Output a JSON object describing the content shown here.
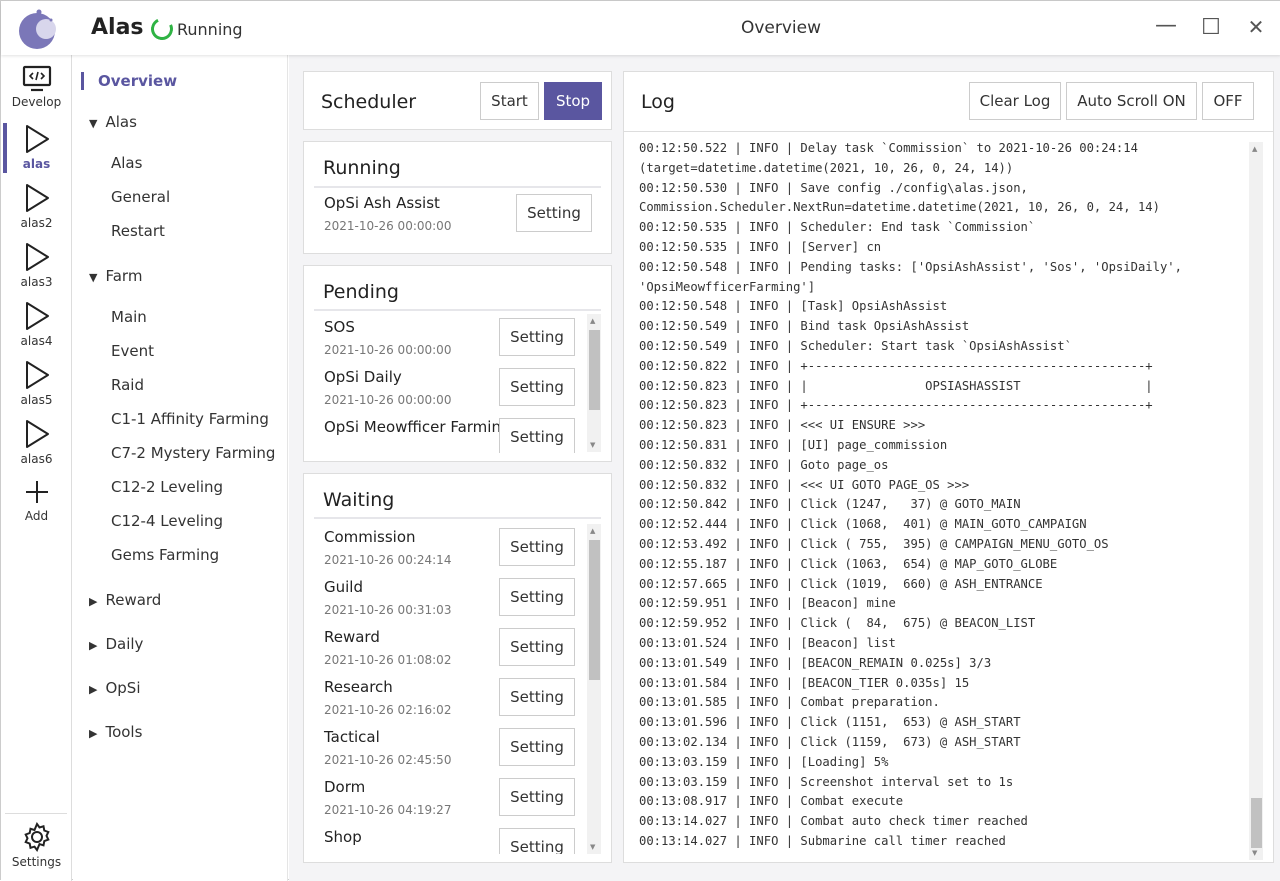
{
  "app": {
    "name": "Alas",
    "status": "Running",
    "window_title": "Overview",
    "accent": "#5a56a0",
    "running_color": "#2fb344"
  },
  "window_controls": {
    "minimize": "—",
    "maximize": "☐",
    "close": "✕"
  },
  "rail": [
    {
      "label": "Develop",
      "icon": "code-monitor-icon"
    },
    {
      "label": "alas",
      "icon": "play-icon"
    },
    {
      "label": "alas2",
      "icon": "play-icon"
    },
    {
      "label": "alas3",
      "icon": "play-icon"
    },
    {
      "label": "alas4",
      "icon": "play-icon"
    },
    {
      "label": "alas5",
      "icon": "play-icon"
    },
    {
      "label": "alas6",
      "icon": "play-icon"
    },
    {
      "label": "Add",
      "icon": "plus-icon"
    }
  ],
  "rail_settings": {
    "label": "Settings",
    "icon": "gear-icon"
  },
  "sidebar": {
    "overview": "Overview",
    "groups": [
      {
        "label": "Alas",
        "expanded": true,
        "items": [
          "Alas",
          "General",
          "Restart"
        ]
      },
      {
        "label": "Farm",
        "expanded": true,
        "items": [
          "Main",
          "Event",
          "Raid",
          "C1-1 Affinity Farming",
          "C7-2 Mystery Farming",
          "C12-2 Leveling",
          "C12-4 Leveling",
          "Gems Farming"
        ]
      },
      {
        "label": "Reward",
        "expanded": false,
        "items": []
      },
      {
        "label": "Daily",
        "expanded": false,
        "items": []
      },
      {
        "label": "OpSi",
        "expanded": false,
        "items": []
      },
      {
        "label": "Tools",
        "expanded": false,
        "items": []
      }
    ]
  },
  "scheduler": {
    "title": "Scheduler",
    "start": "Start",
    "stop": "Stop"
  },
  "running": {
    "title": "Running",
    "tasks": [
      {
        "name": "OpSi Ash Assist",
        "time": "2021-10-26 00:00:00"
      }
    ]
  },
  "pending": {
    "title": "Pending",
    "tasks": [
      {
        "name": "SOS",
        "time": "2021-10-26 00:00:00"
      },
      {
        "name": "OpSi Daily",
        "time": "2021-10-26 00:00:00"
      },
      {
        "name": "OpSi Meowfficer Farming",
        "time": ""
      }
    ]
  },
  "waiting": {
    "title": "Waiting",
    "tasks": [
      {
        "name": "Commission",
        "time": "2021-10-26 00:24:14"
      },
      {
        "name": "Guild",
        "time": "2021-10-26 00:31:03"
      },
      {
        "name": "Reward",
        "time": "2021-10-26 01:08:02"
      },
      {
        "name": "Research",
        "time": "2021-10-26 02:16:02"
      },
      {
        "name": "Tactical",
        "time": "2021-10-26 02:45:50"
      },
      {
        "name": "Dorm",
        "time": "2021-10-26 04:19:27"
      },
      {
        "name": "Shop",
        "time": ""
      }
    ]
  },
  "setting_label": "Setting",
  "log": {
    "title": "Log",
    "clear": "Clear Log",
    "autoscroll": "Auto Scroll ON",
    "off": "OFF",
    "lines": [
      "00:12:50.522 | INFO | Delay task `Commission` to 2021-10-26 00:24:14",
      "(target=datetime.datetime(2021, 10, 26, 0, 24, 14))",
      "00:12:50.530 | INFO | Save config ./config\\alas.json,",
      "Commission.Scheduler.NextRun=datetime.datetime(2021, 10, 26, 0, 24, 14)",
      "00:12:50.535 | INFO | Scheduler: End task `Commission`",
      "00:12:50.535 | INFO | [Server] cn",
      "00:12:50.548 | INFO | Pending tasks: ['OpsiAshAssist', 'Sos', 'OpsiDaily',",
      "'OpsiMeowfficerFarming']",
      "00:12:50.548 | INFO | [Task] OpsiAshAssist",
      "00:12:50.549 | INFO | Bind task OpsiAshAssist",
      "00:12:50.549 | INFO | Scheduler: Start task `OpsiAshAssist`",
      "00:12:50.822 | INFO | +----------------------------------------------+",
      "00:12:50.823 | INFO | |                OPSIASHASSIST                 |",
      "00:12:50.823 | INFO | +----------------------------------------------+",
      "00:12:50.823 | INFO | <<< UI ENSURE >>>",
      "00:12:50.831 | INFO | [UI] page_commission",
      "00:12:50.832 | INFO | Goto page_os",
      "00:12:50.832 | INFO | <<< UI GOTO PAGE_OS >>>",
      "00:12:50.842 | INFO | Click (1247,   37) @ GOTO_MAIN",
      "00:12:52.444 | INFO | Click (1068,  401) @ MAIN_GOTO_CAMPAIGN",
      "00:12:53.492 | INFO | Click ( 755,  395) @ CAMPAIGN_MENU_GOTO_OS",
      "00:12:55.187 | INFO | Click (1063,  654) @ MAP_GOTO_GLOBE",
      "00:12:57.665 | INFO | Click (1019,  660) @ ASH_ENTRANCE",
      "00:12:59.951 | INFO | [Beacon] mine",
      "00:12:59.952 | INFO | Click (  84,  675) @ BEACON_LIST",
      "00:13:01.524 | INFO | [Beacon] list",
      "00:13:01.549 | INFO | [BEACON_REMAIN 0.025s] 3/3",
      "00:13:01.584 | INFO | [BEACON_TIER 0.035s] 15",
      "00:13:01.585 | INFO | Combat preparation.",
      "00:13:01.596 | INFO | Click (1151,  653) @ ASH_START",
      "00:13:02.134 | INFO | Click (1159,  673) @ ASH_START",
      "00:13:03.159 | INFO | [Loading] 5%",
      "00:13:03.159 | INFO | Screenshot interval set to 1s",
      "00:13:08.917 | INFO | Combat execute",
      "00:13:14.027 | INFO | Combat auto check timer reached",
      "00:13:14.027 | INFO | Submarine call timer reached"
    ]
  }
}
